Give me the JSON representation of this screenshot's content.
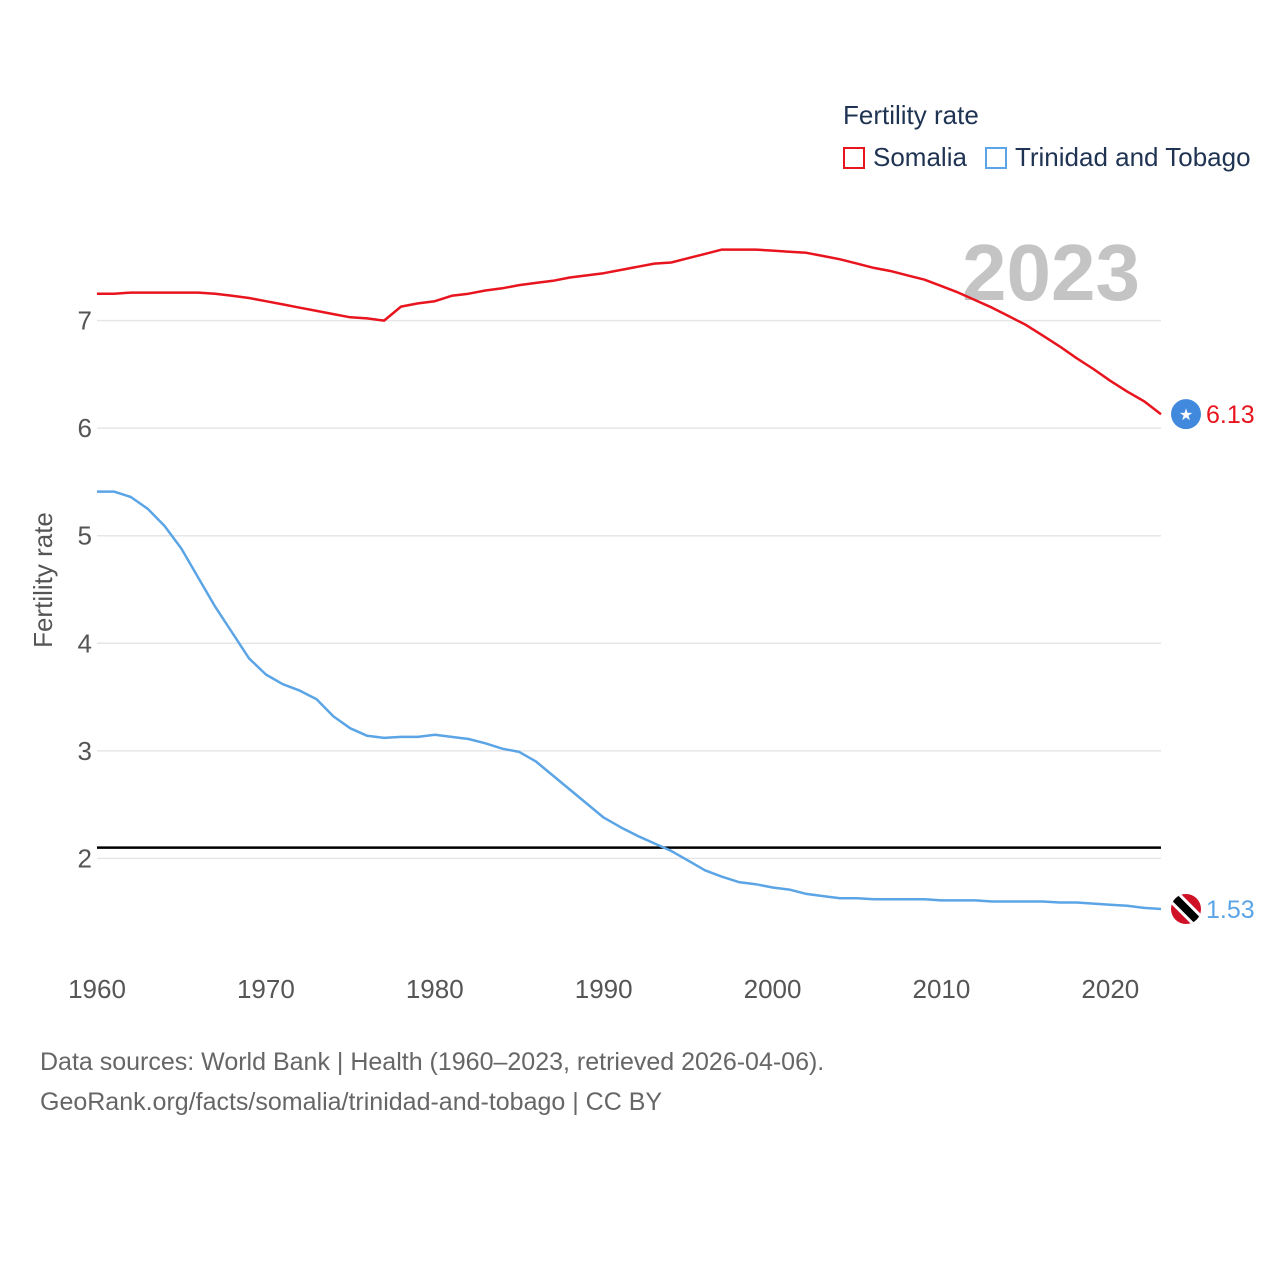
{
  "legend": {
    "title": "Fertility rate",
    "items": [
      {
        "label": "Somalia",
        "color": "#e8141e"
      },
      {
        "label": "Trinidad and Tobago",
        "color": "#5ba5e6"
      }
    ]
  },
  "chart_data": {
    "type": "line",
    "title": "Fertility rate",
    "year_label": "2023",
    "xlabel": "",
    "ylabel": "Fertility rate",
    "xlim": [
      1960,
      2023
    ],
    "ylim": [
      1.0,
      8.0
    ],
    "xticks": [
      1960,
      1970,
      1980,
      1990,
      2000,
      2010,
      2020
    ],
    "yticks": [
      2,
      3,
      4,
      5,
      6,
      7
    ],
    "reference_line": {
      "value": 2.1,
      "color": "#000000"
    },
    "series": [
      {
        "name": "Somalia",
        "color": "#e8141e",
        "end_label": "6.13",
        "flag_icon": "somalia-flag-icon",
        "points": [
          [
            1960,
            7.25
          ],
          [
            1961,
            7.25
          ],
          [
            1962,
            7.26
          ],
          [
            1963,
            7.26
          ],
          [
            1964,
            7.26
          ],
          [
            1965,
            7.26
          ],
          [
            1966,
            7.26
          ],
          [
            1967,
            7.25
          ],
          [
            1968,
            7.23
          ],
          [
            1969,
            7.21
          ],
          [
            1970,
            7.18
          ],
          [
            1971,
            7.15
          ],
          [
            1972,
            7.12
          ],
          [
            1973,
            7.09
          ],
          [
            1974,
            7.06
          ],
          [
            1975,
            7.03
          ],
          [
            1976,
            7.02
          ],
          [
            1977,
            7.0
          ],
          [
            1978,
            7.13
          ],
          [
            1979,
            7.16
          ],
          [
            1980,
            7.18
          ],
          [
            1981,
            7.23
          ],
          [
            1982,
            7.25
          ],
          [
            1983,
            7.28
          ],
          [
            1984,
            7.3
          ],
          [
            1985,
            7.33
          ],
          [
            1986,
            7.35
          ],
          [
            1987,
            7.37
          ],
          [
            1988,
            7.4
          ],
          [
            1989,
            7.42
          ],
          [
            1990,
            7.44
          ],
          [
            1991,
            7.47
          ],
          [
            1992,
            7.5
          ],
          [
            1993,
            7.53
          ],
          [
            1994,
            7.54
          ],
          [
            1995,
            7.58
          ],
          [
            1996,
            7.62
          ],
          [
            1997,
            7.66
          ],
          [
            1998,
            7.66
          ],
          [
            1999,
            7.66
          ],
          [
            2000,
            7.65
          ],
          [
            2001,
            7.64
          ],
          [
            2002,
            7.63
          ],
          [
            2003,
            7.6
          ],
          [
            2004,
            7.57
          ],
          [
            2005,
            7.53
          ],
          [
            2006,
            7.49
          ],
          [
            2007,
            7.46
          ],
          [
            2008,
            7.42
          ],
          [
            2009,
            7.38
          ],
          [
            2010,
            7.32
          ],
          [
            2011,
            7.26
          ],
          [
            2012,
            7.19
          ],
          [
            2013,
            7.12
          ],
          [
            2014,
            7.04
          ],
          [
            2015,
            6.96
          ],
          [
            2016,
            6.86
          ],
          [
            2017,
            6.76
          ],
          [
            2018,
            6.65
          ],
          [
            2019,
            6.55
          ],
          [
            2020,
            6.44
          ],
          [
            2021,
            6.34
          ],
          [
            2022,
            6.25
          ],
          [
            2023,
            6.13
          ]
        ]
      },
      {
        "name": "Trinidad and Tobago",
        "color": "#5ba5e6",
        "end_label": "1.53",
        "flag_icon": "trinidad-and-tobago-flag-icon",
        "points": [
          [
            1960,
            5.41
          ],
          [
            1961,
            5.41
          ],
          [
            1962,
            5.36
          ],
          [
            1963,
            5.25
          ],
          [
            1964,
            5.09
          ],
          [
            1965,
            4.88
          ],
          [
            1966,
            4.61
          ],
          [
            1967,
            4.34
          ],
          [
            1968,
            4.1
          ],
          [
            1969,
            3.86
          ],
          [
            1970,
            3.71
          ],
          [
            1971,
            3.62
          ],
          [
            1972,
            3.56
          ],
          [
            1973,
            3.48
          ],
          [
            1974,
            3.32
          ],
          [
            1975,
            3.21
          ],
          [
            1976,
            3.14
          ],
          [
            1977,
            3.12
          ],
          [
            1978,
            3.13
          ],
          [
            1979,
            3.13
          ],
          [
            1980,
            3.15
          ],
          [
            1981,
            3.13
          ],
          [
            1982,
            3.11
          ],
          [
            1983,
            3.07
          ],
          [
            1984,
            3.02
          ],
          [
            1985,
            2.99
          ],
          [
            1986,
            2.9
          ],
          [
            1987,
            2.77
          ],
          [
            1988,
            2.64
          ],
          [
            1989,
            2.51
          ],
          [
            1990,
            2.38
          ],
          [
            1991,
            2.29
          ],
          [
            1992,
            2.21
          ],
          [
            1993,
            2.14
          ],
          [
            1994,
            2.07
          ],
          [
            1995,
            1.98
          ],
          [
            1996,
            1.89
          ],
          [
            1997,
            1.83
          ],
          [
            1998,
            1.78
          ],
          [
            1999,
            1.76
          ],
          [
            2000,
            1.73
          ],
          [
            2001,
            1.71
          ],
          [
            2002,
            1.67
          ],
          [
            2003,
            1.65
          ],
          [
            2004,
            1.63
          ],
          [
            2005,
            1.63
          ],
          [
            2006,
            1.62
          ],
          [
            2007,
            1.62
          ],
          [
            2008,
            1.62
          ],
          [
            2009,
            1.62
          ],
          [
            2010,
            1.61
          ],
          [
            2011,
            1.61
          ],
          [
            2012,
            1.61
          ],
          [
            2013,
            1.6
          ],
          [
            2014,
            1.6
          ],
          [
            2015,
            1.6
          ],
          [
            2016,
            1.6
          ],
          [
            2017,
            1.59
          ],
          [
            2018,
            1.59
          ],
          [
            2019,
            1.58
          ],
          [
            2020,
            1.57
          ],
          [
            2021,
            1.56
          ],
          [
            2022,
            1.54
          ],
          [
            2023,
            1.53
          ]
        ]
      }
    ]
  },
  "source": {
    "line1": "Data sources: World Bank | Health (1960–2023, retrieved 2026-04-06).",
    "line2": "GeoRank.org/facts/somalia/trinidad-and-tobago | CC BY"
  }
}
